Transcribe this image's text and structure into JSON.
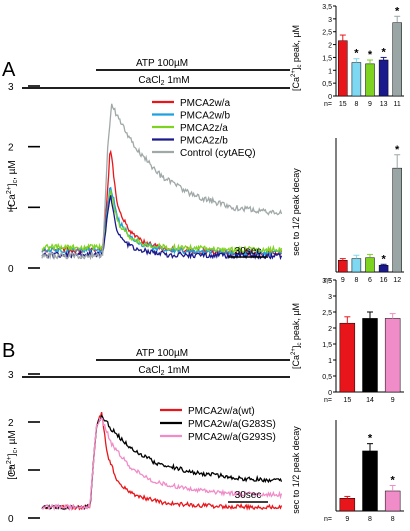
{
  "figure": {
    "panel_a": {
      "letter": "A",
      "atp_label": "ATP 100µM",
      "cacl_label": "CaCl",
      "cacl_sub": "2",
      "cacl_tail": " 1mM",
      "scale_bar": "30sec"
    },
    "panel_b": {
      "letter": "B",
      "atp_label": "ATP 100µM",
      "cacl_label": "CaCl",
      "cacl_sub": "2",
      "cacl_tail": " 1mM",
      "scale_bar": "30sec"
    }
  },
  "chart_data": [
    {
      "id": "traceA",
      "type": "line",
      "ylabel": "[Ca2+]c, µM",
      "ylim": [
        0,
        3
      ],
      "yticks": [
        "0",
        "1",
        "2",
        "3"
      ],
      "xlabel": "",
      "legend_position": "top-right",
      "series": [
        {
          "name": "PMCA2w/a",
          "color": "#e8161b",
          "x": [
            0,
            48,
            52,
            54,
            60,
            70,
            80,
            100,
            140,
            190
          ],
          "y": [
            0.3,
            0.3,
            1.3,
            2.0,
            1.0,
            0.6,
            0.42,
            0.3,
            0.26,
            0.25
          ]
        },
        {
          "name": "PMCA2w/b",
          "color": "#1da0e0",
          "x": [
            0,
            48,
            52,
            54,
            60,
            70,
            80,
            100,
            140,
            190
          ],
          "y": [
            0.3,
            0.3,
            1.0,
            1.4,
            0.8,
            0.5,
            0.38,
            0.3,
            0.26,
            0.25
          ]
        },
        {
          "name": "PMCA2z/a",
          "color": "#7ed321",
          "x": [
            0,
            48,
            52,
            54,
            60,
            70,
            80,
            100,
            140,
            190
          ],
          "y": [
            0.34,
            0.34,
            0.9,
            1.3,
            0.75,
            0.5,
            0.4,
            0.34,
            0.31,
            0.3
          ]
        },
        {
          "name": "PMCA2z/b",
          "color": "#1a1a8c",
          "x": [
            0,
            48,
            52,
            54,
            60,
            70,
            80,
            100,
            140,
            190
          ],
          "y": [
            0.22,
            0.22,
            0.9,
            1.2,
            0.55,
            0.35,
            0.28,
            0.22,
            0.21,
            0.2
          ]
        },
        {
          "name": "Control (cytAEQ)",
          "color": "#a0a8a8",
          "x": [
            0,
            48,
            52,
            55,
            62,
            75,
            95,
            120,
            150,
            190
          ],
          "y": [
            0.2,
            0.2,
            2.0,
            2.7,
            2.4,
            1.95,
            1.5,
            1.2,
            1.0,
            0.9
          ]
        }
      ]
    },
    {
      "id": "barA1",
      "type": "bar",
      "ylabel": "[Ca2+]c peak, µM",
      "ylim": [
        0,
        3.5
      ],
      "yticks": [
        "0",
        "0,5",
        "1",
        "1,5",
        "2",
        "2,5",
        "3",
        "3,5"
      ],
      "categories": [
        "PMCA2w/a",
        "PMCA2w/b",
        "PMCA2z/a",
        "PMCA2z/b",
        "Control (cytAEQ)"
      ],
      "values": [
        2.15,
        1.3,
        1.25,
        1.4,
        2.85
      ],
      "errors": [
        0.22,
        0.15,
        0.15,
        0.1,
        0.25
      ],
      "significant": [
        false,
        true,
        true,
        true,
        true
      ],
      "n_label": "n=",
      "n": [
        "15",
        "8",
        "9",
        "13",
        "11"
      ],
      "colors": [
        "#e8161b",
        "#7fd8f2",
        "#7ed321",
        "#1a1a8c",
        "#9aa6a6"
      ]
    },
    {
      "id": "barA2",
      "type": "bar",
      "ylabel": "sec to 1/2 peak decay",
      "ylim": [
        0,
        80
      ],
      "categories": [
        "PMCA2w/a",
        "PMCA2w/b",
        "PMCA2z/a",
        "PMCA2z/b",
        "Control (cytAEQ)"
      ],
      "values": [
        7,
        8,
        8.5,
        4,
        62
      ],
      "errors": [
        1,
        2,
        2,
        0.6,
        8
      ],
      "significant": [
        false,
        false,
        false,
        true,
        true
      ],
      "n_label": "n=",
      "n": [
        "9",
        "8",
        "6",
        "16",
        "12"
      ],
      "colors": [
        "#e8161b",
        "#7fd8f2",
        "#7ed321",
        "#1a1a8c",
        "#9aa6a6"
      ]
    },
    {
      "id": "traceB",
      "type": "line",
      "ylabel": "[Ca2+]c, µM",
      "ylim": [
        0,
        3
      ],
      "yticks": [
        "0",
        "1",
        "2",
        "3"
      ],
      "xlabel": "",
      "legend_position": "top-right",
      "series": [
        {
          "name": "PMCA2w/a(wt)",
          "color": "#e8161b",
          "x": [
            0,
            38,
            43,
            47,
            52,
            60,
            75,
            100,
            140,
            190
          ],
          "y": [
            0.23,
            0.23,
            1.9,
            2.2,
            1.3,
            0.75,
            0.45,
            0.3,
            0.24,
            0.22
          ]
        },
        {
          "name": "PMCA2w/a(G283S)",
          "color": "#000000",
          "x": [
            0,
            38,
            43,
            47,
            55,
            70,
            90,
            120,
            160,
            190
          ],
          "y": [
            0.23,
            0.23,
            1.9,
            2.15,
            1.85,
            1.45,
            1.15,
            0.95,
            0.82,
            0.78
          ]
        },
        {
          "name": "PMCA2w/a(G293S)",
          "color": "#f08cc8",
          "x": [
            0,
            38,
            43,
            47,
            55,
            70,
            90,
            120,
            160,
            190
          ],
          "y": [
            0.23,
            0.23,
            1.9,
            2.1,
            1.55,
            1.05,
            0.75,
            0.58,
            0.5,
            0.48
          ]
        }
      ]
    },
    {
      "id": "barB1",
      "type": "bar",
      "ylabel": "[Ca2+]c peak, µM",
      "ylim": [
        0,
        3.5
      ],
      "yticks": [
        "0",
        "0,5",
        "1",
        "1,5",
        "2",
        "2,5",
        "3",
        "3,5"
      ],
      "categories": [
        "PMCA2w/a(wt)",
        "PMCA2w/a(G283S)",
        "PMCA2w/a(G293S)"
      ],
      "values": [
        2.15,
        2.3,
        2.3
      ],
      "errors": [
        0.2,
        0.2,
        0.15
      ],
      "significant": [
        false,
        false,
        false
      ],
      "n_label": "n=",
      "n": [
        "15",
        "14",
        "9"
      ],
      "colors": [
        "#e8161b",
        "#000000",
        "#f08cc8"
      ]
    },
    {
      "id": "barB2",
      "type": "bar",
      "ylabel": "sec to 1/2 peak decay",
      "ylim": [
        0,
        50
      ],
      "categories": [
        "PMCA2w/a(wt)",
        "PMCA2w/a(G283S)",
        "PMCA2w/a(G293S)"
      ],
      "values": [
        7,
        33,
        11
      ],
      "errors": [
        1,
        4,
        3
      ],
      "significant": [
        false,
        true,
        true
      ],
      "n_label": "n=",
      "n": [
        "9",
        "8",
        "8"
      ],
      "colors": [
        "#e8161b",
        "#000000",
        "#f08cc8"
      ]
    }
  ]
}
